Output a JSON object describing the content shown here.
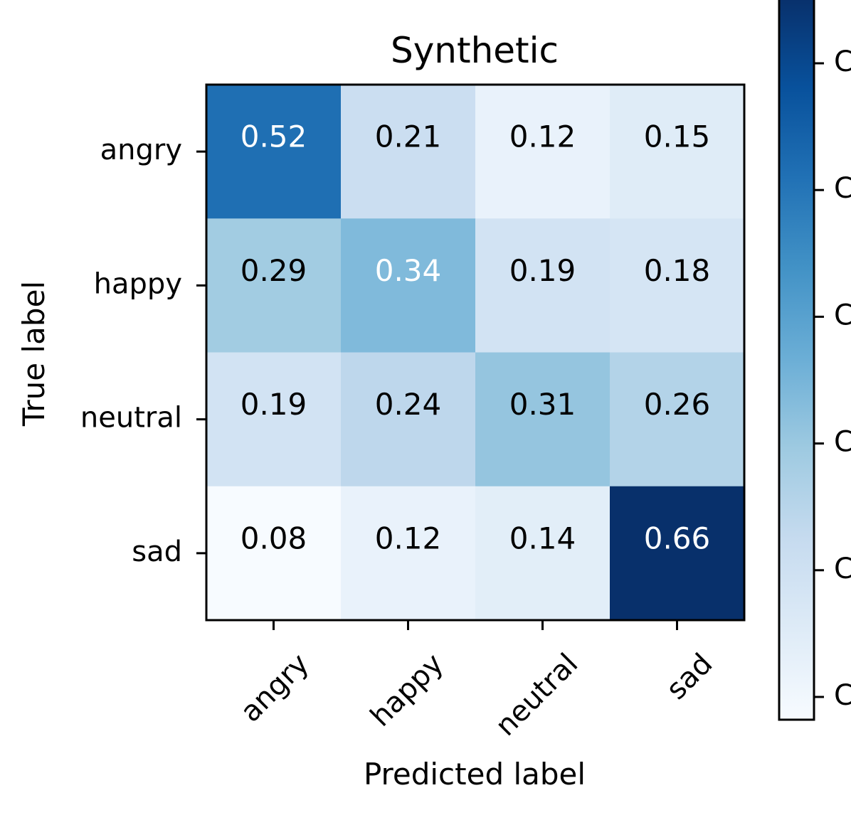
{
  "chart_data": {
    "type": "heatmap",
    "title": "Synthetic",
    "xlabel": "Predicted label",
    "ylabel": "True label",
    "x_categories": [
      "angry",
      "happy",
      "neutral",
      "sad"
    ],
    "y_categories": [
      "angry",
      "happy",
      "neutral",
      "sad"
    ],
    "values": [
      [
        0.52,
        0.21,
        0.12,
        0.15
      ],
      [
        0.29,
        0.34,
        0.19,
        0.18
      ],
      [
        0.19,
        0.24,
        0.31,
        0.26
      ],
      [
        0.08,
        0.12,
        0.14,
        0.66
      ]
    ],
    "value_labels": [
      [
        "0.52",
        "0.21",
        "0.12",
        "0.15"
      ],
      [
        "0.29",
        "0.34",
        "0.19",
        "0.18"
      ],
      [
        "0.19",
        "0.24",
        "0.31",
        "0.26"
      ],
      [
        "0.08",
        "0.12",
        "0.14",
        "0.66"
      ]
    ],
    "colormap": "Blues",
    "vmin": 0.08,
    "vmax": 0.66,
    "colorbar_tick_labels": [
      "C",
      "C",
      "C",
      "C",
      "C",
      "C"
    ],
    "colors": {
      "low": "#f7fbff",
      "high": "#08306b",
      "text_dark": "#000000",
      "text_light": "#ffffff",
      "frame": "#000000"
    }
  }
}
